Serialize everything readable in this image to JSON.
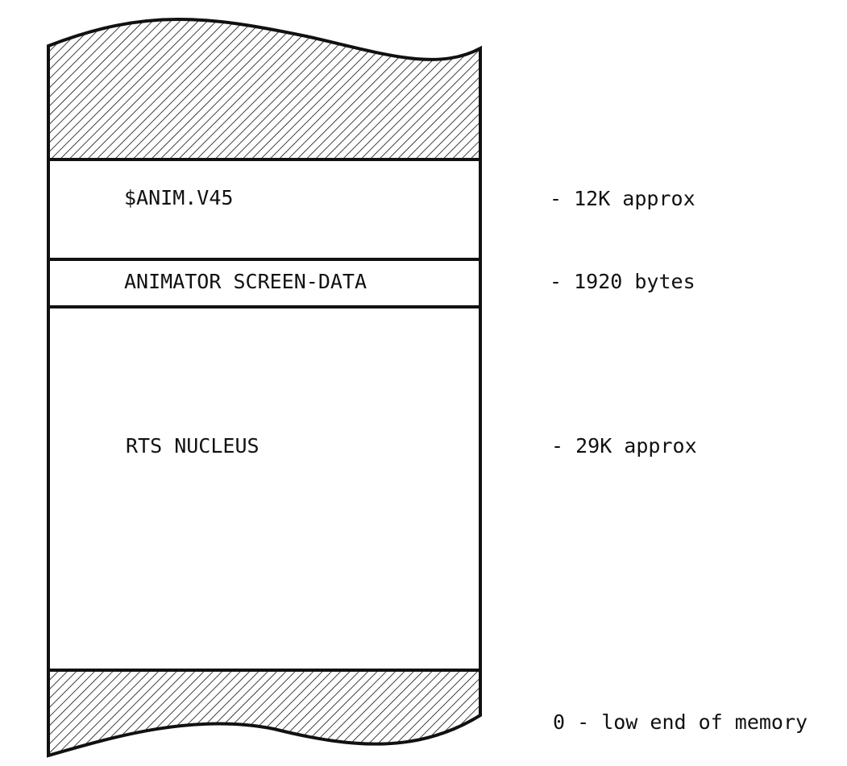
{
  "diagram": {
    "segments": [
      {
        "name": "$ANIM.V45",
        "size": "- 12K approx"
      },
      {
        "name": "ANIMATOR SCREEN-DATA",
        "size": "- 1920 bytes"
      },
      {
        "name": "RTS NUCLEUS",
        "size": "- 29K approx"
      }
    ],
    "bottom_note": "0 - low end of memory"
  },
  "colors": {
    "ink": "#111111",
    "background": "#ffffff"
  }
}
